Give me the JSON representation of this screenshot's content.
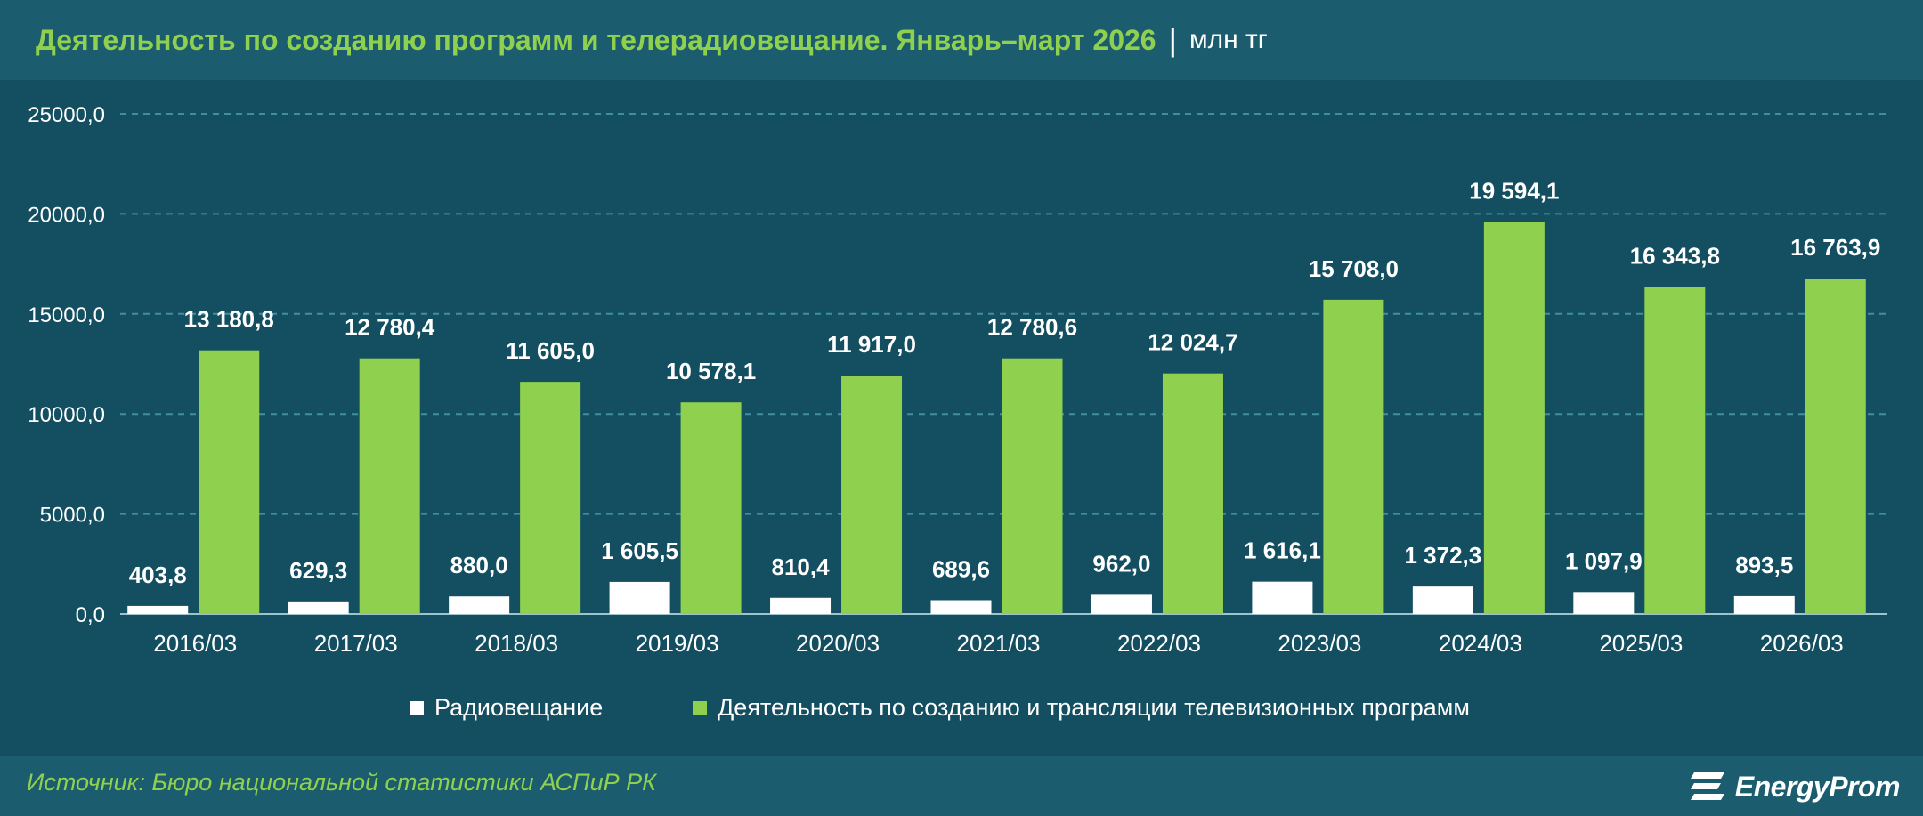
{
  "header": {
    "title": "Деятельность по созданию программ и телерадиовещание. Январь–март 2026",
    "separator": "|",
    "unit": "млн тг"
  },
  "chart_data": {
    "type": "bar",
    "categories": [
      "2016/03",
      "2017/03",
      "2018/03",
      "2019/03",
      "2020/03",
      "2021/03",
      "2022/03",
      "2023/03",
      "2024/03",
      "2025/03",
      "2026/03"
    ],
    "series": [
      {
        "name": "Радиовещание",
        "color": "#ffffff",
        "values": [
          403.8,
          629.3,
          880.0,
          1605.5,
          810.4,
          689.6,
          962.0,
          1616.1,
          1372.3,
          1097.9,
          893.5
        ],
        "labels": [
          "403,8",
          "629,3",
          "880,0",
          "1 605,5",
          "810,4",
          "689,6",
          "962,0",
          "1 616,1",
          "1 372,3",
          "1 097,9",
          "893,5"
        ]
      },
      {
        "name": "Деятельность по созданию и трансляции телевизионных программ",
        "color": "#8fd14f",
        "values": [
          13180.8,
          12780.4,
          11605.0,
          10578.1,
          11917.0,
          12780.6,
          12024.7,
          15708.0,
          19594.1,
          16343.8,
          16763.9
        ],
        "labels": [
          "13 180,8",
          "12 780,4",
          "11 605,0",
          "10 578,1",
          "11 917,0",
          "12 780,6",
          "12 024,7",
          "15 708,0",
          "19 594,1",
          "16 343,8",
          "16 763,9"
        ]
      }
    ],
    "ylim": [
      0,
      25000
    ],
    "yticks": [
      0,
      5000,
      10000,
      15000,
      20000,
      25000
    ],
    "ytick_labels": [
      "0,0",
      "5000,0",
      "10000,0",
      "15000,0",
      "20000,0",
      "25000,0"
    ],
    "grid": true,
    "legend_position": "bottom"
  },
  "footer": {
    "source": "Источник: Бюро национальной статистики АСПиР РК",
    "logo": "EnergyProm"
  }
}
